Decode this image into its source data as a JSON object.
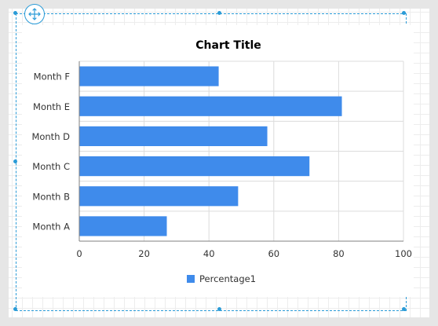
{
  "chart_data": {
    "type": "bar",
    "orientation": "horizontal",
    "title": "Chart Title",
    "categories": [
      "Month A",
      "Month B",
      "Month C",
      "Month D",
      "Month E",
      "Month F"
    ],
    "series": [
      {
        "name": "Percentage1",
        "values": [
          27,
          49,
          71,
          58,
          81,
          43
        ]
      }
    ],
    "xlim": [
      0,
      100
    ],
    "xticks": [
      0,
      20,
      40,
      60,
      80,
      100
    ],
    "grid": true,
    "legend_position": "bottom",
    "colors": {
      "bar": "#3f8beb",
      "grid": "#dcdcdc",
      "axis": "#808080",
      "text": "#333333"
    }
  },
  "icons": {
    "move_handle": "move-arrows-icon"
  }
}
